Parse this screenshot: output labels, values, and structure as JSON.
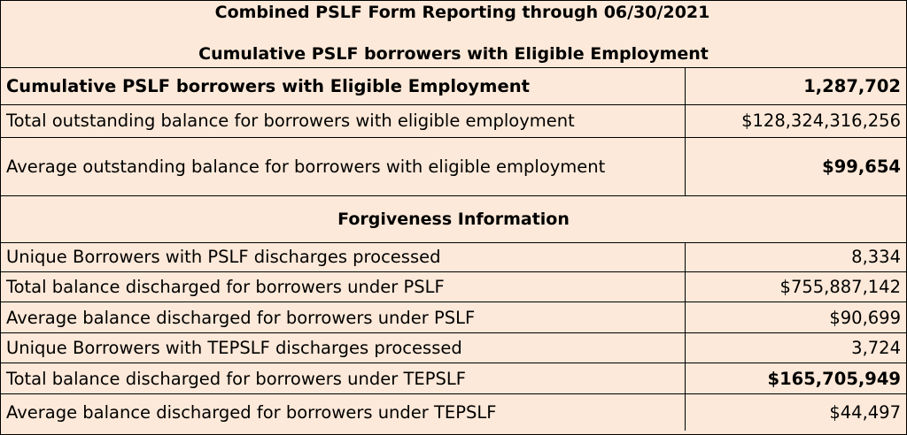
{
  "title": "Combined PSLF Form Reporting through 06/30/2021",
  "subtitle": "Cumulative PSLF borrowers with Eligible Employment",
  "employment_rows": [
    {
      "label": "Cumulative PSLF borrowers with Eligible Employment",
      "value": "1,287,702"
    },
    {
      "label": "Total outstanding balance for borrowers with eligible employment",
      "value": "$128,324,316,256"
    },
    {
      "label": "Average outstanding balance for borrowers with eligible employment",
      "value": "$99,654"
    }
  ],
  "forgiveness_heading": "Forgiveness Information",
  "forgiveness_rows": [
    {
      "label": "Unique Borrowers with PSLF discharges processed",
      "value": "8,334"
    },
    {
      "label": "Total balance discharged for borrowers under PSLF",
      "value": "$755,887,142"
    },
    {
      "label": "Average balance discharged for borrowers under PSLF",
      "value": "$90,699"
    },
    {
      "label": "Unique Borrowers with TEPSLF discharges processed",
      "value": "3,724"
    },
    {
      "label": "Total balance discharged for borrowers under TEPSLF",
      "value": "$165,705,949"
    },
    {
      "label": "Average balance discharged for borrowers under TEPSLF",
      "value": "$44,497"
    }
  ]
}
